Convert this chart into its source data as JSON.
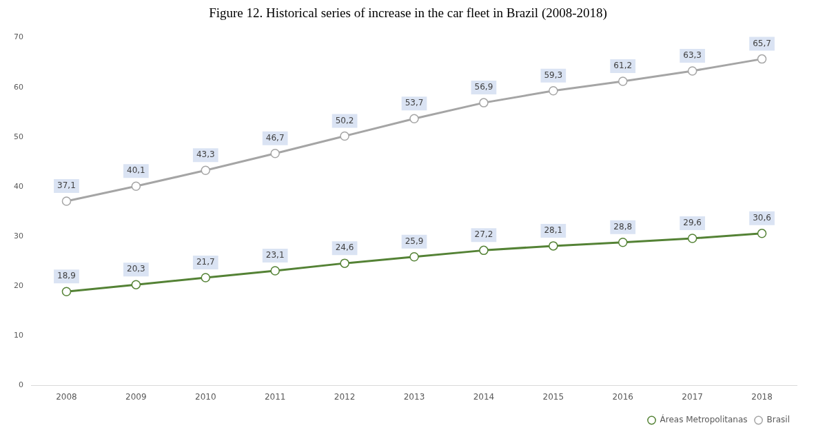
{
  "chart_data": {
    "type": "line",
    "title": "Figure 12. Historical series of increase in the car fleet in Brazil (2008-2018)",
    "categories": [
      "2008",
      "2009",
      "2010",
      "2011",
      "2012",
      "2013",
      "2014",
      "2015",
      "2016",
      "2017",
      "2018"
    ],
    "series": [
      {
        "name": "Áreas Metropolitanas",
        "color": "#548235",
        "values": [
          18.9,
          20.3,
          21.7,
          23.1,
          24.6,
          25.9,
          27.2,
          28.1,
          28.8,
          29.6,
          30.6
        ],
        "value_labels": [
          "18,9",
          "20,3",
          "21,7",
          "23,1",
          "24,6",
          "25,9",
          "27,2",
          "28,1",
          "28,8",
          "29,6",
          "30,6"
        ]
      },
      {
        "name": "Brasil",
        "color": "#a5a5a5",
        "values": [
          37.1,
          40.1,
          43.3,
          46.7,
          50.2,
          53.7,
          56.9,
          59.3,
          61.2,
          63.3,
          65.7
        ],
        "value_labels": [
          "37,1",
          "40,1",
          "43,3",
          "46,7",
          "50,2",
          "53,7",
          "56,9",
          "59,3",
          "61,2",
          "63,3",
          "65,7"
        ]
      }
    ],
    "ylim": [
      0,
      70
    ],
    "yticks": [
      0,
      10,
      20,
      30,
      40,
      50,
      60,
      70
    ],
    "grid": false,
    "legend": "bottom right",
    "marker": "circle",
    "line_style": "solid"
  }
}
